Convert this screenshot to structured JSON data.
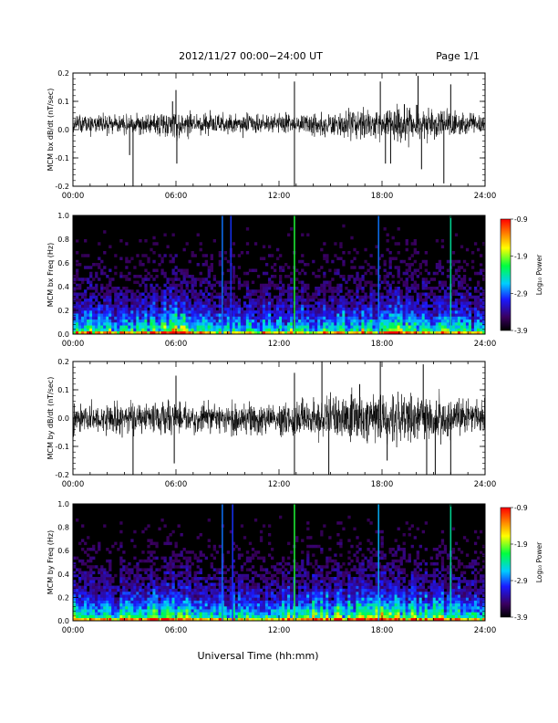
{
  "header": {
    "title": "2012/11/27  00:00−24:00 UT",
    "page": "Page 1/1"
  },
  "xaxis": {
    "label": "Universal Time (hh:mm)",
    "ticks": [
      "00:00",
      "06:00",
      "12:00",
      "18:00",
      "24:00"
    ],
    "range_hours": [
      0,
      24
    ]
  },
  "colors": {
    "trace": "#000000",
    "spectrogram_background": "#000000"
  },
  "chart_data": [
    {
      "type": "line",
      "name": "MCM bx dB/dt",
      "ylabel": "MCM bx dB/dt (nT/sec)",
      "ylim": [
        -0.2,
        0.2
      ],
      "yticks": [
        "0.2",
        "0.1",
        "0.0",
        "-0.1",
        "-0.2"
      ],
      "baseline": 0.02,
      "noise": [
        [
          0,
          0.03
        ],
        [
          4.5,
          0.03
        ],
        [
          5.8,
          0.05
        ],
        [
          6.5,
          0.04
        ],
        [
          12,
          0.03
        ],
        [
          15,
          0.04
        ],
        [
          17,
          0.05
        ],
        [
          19,
          0.06
        ],
        [
          22,
          0.04
        ],
        [
          24,
          0.03
        ]
      ],
      "spikes": [
        {
          "t": 3.5,
          "v": -0.21
        },
        {
          "t": 3.3,
          "v": -0.09
        },
        {
          "t": 6.0,
          "v": 0.14
        },
        {
          "t": 6.05,
          "v": -0.12
        },
        {
          "t": 5.8,
          "v": 0.1
        },
        {
          "t": 12.9,
          "v": 0.17
        },
        {
          "t": 12.9,
          "v": -0.2
        },
        {
          "t": 17.9,
          "v": 0.17
        },
        {
          "t": 18.2,
          "v": -0.12
        },
        {
          "t": 18.5,
          "v": -0.12
        },
        {
          "t": 20.1,
          "v": 0.19
        },
        {
          "t": 20.3,
          "v": -0.14
        },
        {
          "t": 21.6,
          "v": -0.19
        },
        {
          "t": 22.0,
          "v": 0.16
        },
        {
          "t": 19.3,
          "v": 0.09
        }
      ]
    },
    {
      "type": "heatmap",
      "name": "MCM bx Freq",
      "ylabel": "MCM bx Freq (Hz)",
      "ylim": [
        0.0,
        1.0
      ],
      "yticks": [
        "1.0",
        "0.8",
        "0.6",
        "0.4",
        "0.2",
        "0.0"
      ],
      "colorbar": {
        "label": "Log₁₀ Power",
        "ticks": [
          "-0.9",
          "-1.9",
          "-2.9",
          "-3.9"
        ],
        "range": [
          -3.9,
          -0.9
        ]
      },
      "bright_lines": [
        {
          "t": 12.9,
          "level": 0.6
        },
        {
          "t": 22.0,
          "level": 0.5
        },
        {
          "t": 8.7,
          "level": 0.35
        },
        {
          "t": 9.2,
          "level": 0.3
        },
        {
          "t": 17.8,
          "level": 0.35
        }
      ],
      "activity": [
        [
          0,
          0.5
        ],
        [
          1,
          0.6
        ],
        [
          3,
          0.45
        ],
        [
          4.5,
          0.55
        ],
        [
          6,
          0.65
        ],
        [
          8,
          0.5
        ],
        [
          10,
          0.45
        ],
        [
          12,
          0.5
        ],
        [
          14,
          0.5
        ],
        [
          16,
          0.55
        ],
        [
          18,
          0.65
        ],
        [
          20,
          0.6
        ],
        [
          22,
          0.5
        ],
        [
          24,
          0.4
        ]
      ]
    },
    {
      "type": "line",
      "name": "MCM by dB/dt",
      "ylabel": "MCM by dB/dt (nT/sec)",
      "ylim": [
        -0.2,
        0.2
      ],
      "yticks": [
        "0.2",
        "0.1",
        "0.0",
        "-0.1",
        "-0.2"
      ],
      "baseline": 0.0,
      "noise": [
        [
          0,
          0.045
        ],
        [
          2,
          0.05
        ],
        [
          5.8,
          0.06
        ],
        [
          6.5,
          0.05
        ],
        [
          12,
          0.05
        ],
        [
          13,
          0.06
        ],
        [
          14.5,
          0.07
        ],
        [
          17,
          0.07
        ],
        [
          19,
          0.08
        ],
        [
          21,
          0.07
        ],
        [
          24,
          0.05
        ]
      ],
      "spikes": [
        {
          "t": 3.5,
          "v": -0.21
        },
        {
          "t": 6.0,
          "v": 0.15
        },
        {
          "t": 5.9,
          "v": -0.16
        },
        {
          "t": 12.9,
          "v": 0.16
        },
        {
          "t": 12.9,
          "v": -0.2
        },
        {
          "t": 14.5,
          "v": 0.2
        },
        {
          "t": 14.9,
          "v": -0.2
        },
        {
          "t": 17.9,
          "v": 0.2
        },
        {
          "t": 18.3,
          "v": -0.15
        },
        {
          "t": 20.4,
          "v": 0.19
        },
        {
          "t": 20.6,
          "v": -0.2
        },
        {
          "t": 21.1,
          "v": -0.2
        },
        {
          "t": 22.0,
          "v": -0.2
        },
        {
          "t": 16.7,
          "v": 0.12
        }
      ]
    },
    {
      "type": "heatmap",
      "name": "MCM by Freq",
      "ylabel": "MCM by Freq (Hz)",
      "ylim": [
        0.0,
        1.0
      ],
      "yticks": [
        "1.0",
        "0.8",
        "0.6",
        "0.4",
        "0.2",
        "0.0"
      ],
      "colorbar": {
        "label": "Log₁₀ Power",
        "ticks": [
          "-0.9",
          "-1.9",
          "-2.9",
          "-3.9"
        ],
        "range": [
          -3.9,
          -0.9
        ]
      },
      "bright_lines": [
        {
          "t": 12.9,
          "level": 0.6
        },
        {
          "t": 22.0,
          "level": 0.5
        },
        {
          "t": 8.7,
          "level": 0.35
        },
        {
          "t": 9.3,
          "level": 0.3
        },
        {
          "t": 17.8,
          "level": 0.4
        }
      ],
      "activity": [
        [
          0,
          0.55
        ],
        [
          1,
          0.6
        ],
        [
          3,
          0.5
        ],
        [
          4.5,
          0.6
        ],
        [
          6,
          0.7
        ],
        [
          8,
          0.6
        ],
        [
          10,
          0.5
        ],
        [
          12,
          0.55
        ],
        [
          14,
          0.6
        ],
        [
          16,
          0.6
        ],
        [
          18,
          0.7
        ],
        [
          20,
          0.65
        ],
        [
          22,
          0.6
        ],
        [
          24,
          0.5
        ]
      ]
    }
  ]
}
